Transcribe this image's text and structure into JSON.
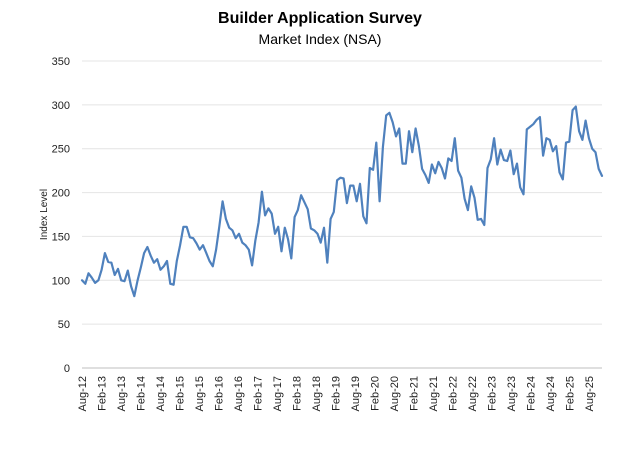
{
  "chart_data": {
    "type": "line",
    "title": "Builder Application Survey",
    "subtitle": "Market Index (NSA)",
    "xlabel": "",
    "ylabel": "Index Level",
    "ylim": [
      0,
      350
    ],
    "yticks": [
      0,
      50,
      100,
      150,
      200,
      250,
      300,
      350
    ],
    "grid": true,
    "legend": "none",
    "x_tick_labels": [
      "Aug-12",
      "Feb-13",
      "Aug-13",
      "Feb-14",
      "Aug-14",
      "Feb-15",
      "Aug-15",
      "Feb-16",
      "Aug-16",
      "Feb-17",
      "Aug-17",
      "Feb-18",
      "Aug-18",
      "Feb-19",
      "Aug-19",
      "Feb-20",
      "Aug-20",
      "Feb-21",
      "Aug-21",
      "Feb-22",
      "Aug-22",
      "Feb-23",
      "Aug-23",
      "Feb-24",
      "Aug-24",
      "Feb-25",
      "Aug-25"
    ],
    "x_start": "2012-08",
    "x_end": "2025-12",
    "series": [
      {
        "name": "",
        "color": "#4f81bd",
        "values": [
          100,
          96,
          108,
          103,
          97,
          100,
          112,
          131,
          121,
          120,
          106,
          113,
          100,
          99,
          111,
          93,
          82,
          100,
          115,
          131,
          138,
          128,
          120,
          124,
          112,
          116,
          122,
          96,
          95,
          122,
          140,
          161,
          161,
          149,
          148,
          142,
          135,
          140,
          131,
          122,
          116,
          135,
          162,
          190,
          170,
          160,
          157,
          148,
          153,
          143,
          140,
          135,
          117,
          145,
          166,
          201,
          174,
          182,
          176,
          153,
          161,
          133,
          160,
          147,
          125,
          172,
          180,
          197,
          189,
          181,
          159,
          157,
          153,
          143,
          160,
          120,
          170,
          178,
          214,
          217,
          216,
          188,
          208,
          208,
          190,
          210,
          173,
          165,
          228,
          226,
          257,
          190,
          252,
          288,
          291,
          280,
          264,
          273,
          233,
          233,
          270,
          246,
          273,
          253,
          227,
          220,
          211,
          232,
          222,
          235,
          228,
          216,
          239,
          236,
          262,
          225,
          217,
          193,
          180,
          207,
          194,
          169,
          170,
          163,
          228,
          238,
          262,
          232,
          249,
          237,
          236,
          248,
          221,
          233,
          206,
          198,
          272,
          275,
          278,
          283,
          286,
          242,
          262,
          260,
          247,
          253,
          223,
          215,
          257,
          258,
          294,
          298,
          270,
          260,
          282,
          262,
          250,
          246,
          227,
          219
        ]
      }
    ]
  }
}
